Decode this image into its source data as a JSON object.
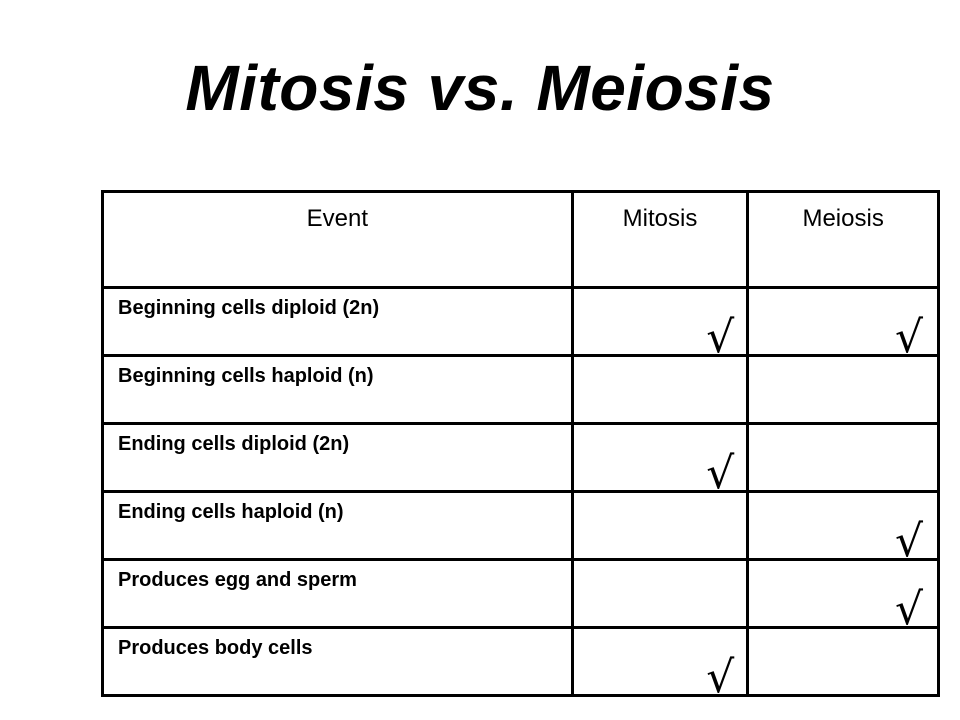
{
  "title": "Mitosis vs. Meiosis",
  "table": {
    "headers": [
      "Event",
      "Mitosis",
      "Meiosis"
    ],
    "rows": [
      {
        "event": "Beginning cells diploid (2n)",
        "mitosis": "√",
        "meiosis": "√"
      },
      {
        "event": "Beginning cells haploid (n)",
        "mitosis": "",
        "meiosis": ""
      },
      {
        "event": "Ending cells diploid (2n)",
        "mitosis": "√",
        "meiosis": ""
      },
      {
        "event": "Ending cells haploid (n)",
        "mitosis": "",
        "meiosis": "√"
      },
      {
        "event": "Produces egg and sperm",
        "mitosis": "",
        "meiosis": "√"
      },
      {
        "event": "Produces body cells",
        "mitosis": "√",
        "meiosis": ""
      }
    ]
  }
}
